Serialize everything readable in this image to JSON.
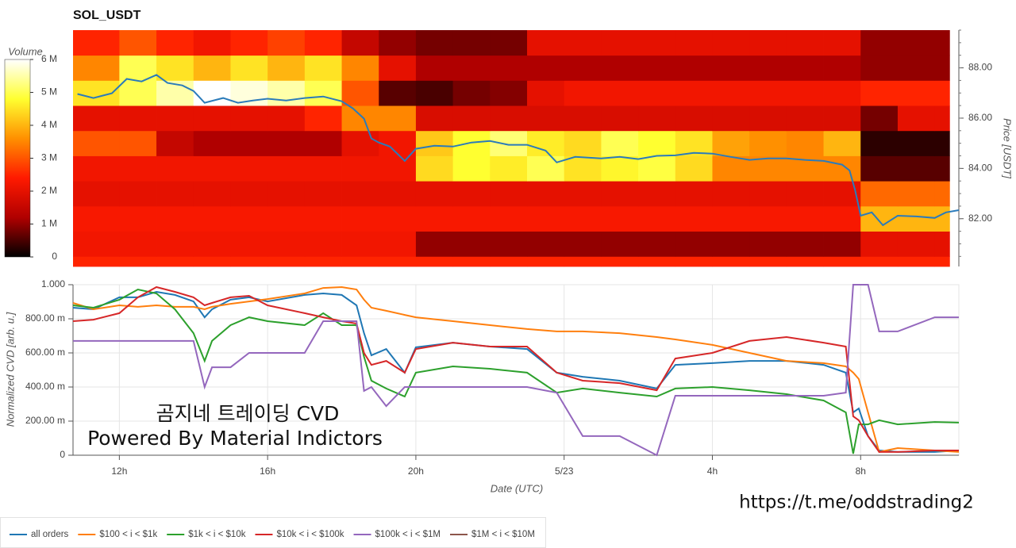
{
  "chart_data": [
    {
      "type": "heatmap",
      "title": "SOL_USDT",
      "xlim": [
        10.75,
        34.65
      ],
      "x_bins": [
        10.75,
        12,
        13,
        14,
        15,
        16,
        17,
        18,
        19,
        20,
        21,
        22,
        23,
        24,
        25,
        26,
        27,
        28,
        29,
        30,
        31,
        32,
        33,
        34,
        34.4
      ],
      "y_bins": [
        79.5,
        80.5,
        81.5,
        82.5,
        83.5,
        84.5,
        85.5,
        86.5,
        87.5,
        88.5,
        89.5
      ],
      "z": [
        [
          2500000.0,
          2500000.0,
          2500000.0,
          2500000.0,
          2500000.0,
          2500000.0,
          2500000.0,
          2500000.0,
          2500000.0,
          2500000.0,
          2500000.0,
          2500000.0,
          2500000.0,
          2500000.0,
          2500000.0,
          2500000.0,
          2500000.0,
          2500000.0,
          2500000.0,
          2500000.0,
          2500000.0,
          2500000.0,
          2500000.0,
          2500000.0
        ],
        [
          2200000.0,
          2200000.0,
          2200000.0,
          2200000.0,
          2200000.0,
          2200000.0,
          2200000.0,
          2200000.0,
          2200000.0,
          1000000.0,
          1000000.0,
          1000000.0,
          1000000.0,
          1000000.0,
          1000000.0,
          1000000.0,
          1000000.0,
          1000000.0,
          1000000.0,
          1000000.0,
          1000000.0,
          2000000.0,
          2000000.0,
          2000000.0
        ],
        [
          2300000.0,
          2300000.0,
          2300000.0,
          2300000.0,
          2300000.0,
          2300000.0,
          2300000.0,
          2300000.0,
          2300000.0,
          2300000.0,
          2300000.0,
          2300000.0,
          2300000.0,
          2300000.0,
          2300000.0,
          2300000.0,
          2300000.0,
          2300000.0,
          2300000.0,
          2300000.0,
          2300000.0,
          4000000.0,
          4000000.0,
          4000000.0
        ],
        [
          2000000.0,
          2000000.0,
          2000000.0,
          2000000.0,
          2000000.0,
          2000000.0,
          2000000.0,
          2000000.0,
          2000000.0,
          2000000.0,
          2000000.0,
          2000000.0,
          2000000.0,
          2000000.0,
          2000000.0,
          2000000.0,
          2000000.0,
          2000000.0,
          2000000.0,
          2000000.0,
          2000000.0,
          3200000.0,
          3200000.0,
          3200000.0
        ],
        [
          2200000.0,
          2200000.0,
          2200000.0,
          2200000.0,
          2200000.0,
          2200000.0,
          2200000.0,
          2200000.0,
          2200000.0,
          4400000.0,
          4800000.0,
          4600000.0,
          5000000.0,
          4500000.0,
          4700000.0,
          4900000.0,
          4400000.0,
          3500000.0,
          3500000.0,
          3500000.0,
          3500000.0,
          600000.0,
          600000.0,
          600000.0
        ],
        [
          3000000.0,
          3000000.0,
          1500000.0,
          1200000.0,
          1200000.0,
          1200000.0,
          1200000.0,
          2000000.0,
          2200000.0,
          4200000.0,
          4800000.0,
          5200000.0,
          4600000.0,
          4400000.0,
          5000000.0,
          4800000.0,
          4500000.0,
          3800000.0,
          3600000.0,
          3500000.0,
          4000000.0,
          300000.0,
          300000.0,
          300000.0
        ],
        [
          2000000.0,
          2000000.0,
          2000000.0,
          2000000.0,
          2000000.0,
          2000000.0,
          2500000.0,
          3500000.0,
          3500000.0,
          1800000.0,
          1800000.0,
          1800000.0,
          1800000.0,
          1800000.0,
          1800000.0,
          1800000.0,
          1800000.0,
          1800000.0,
          1800000.0,
          1800000.0,
          1800000.0,
          800000.0,
          2000000.0,
          2000000.0
        ],
        [
          4500000.0,
          5000000.0,
          5500000.0,
          6000000.0,
          5800000.0,
          5500000.0,
          5000000.0,
          3000000.0,
          600000.0,
          500000.0,
          800000.0,
          900000.0,
          2000000.0,
          2200000.0,
          2200000.0,
          2200000.0,
          2200000.0,
          2200000.0,
          2200000.0,
          2200000.0,
          2200000.0,
          2500000.0,
          2500000.0,
          2500000.0
        ],
        [
          3500000.0,
          5000000.0,
          4500000.0,
          4000000.0,
          4500000.0,
          4000000.0,
          4500000.0,
          3500000.0,
          2000000.0,
          1200000.0,
          1200000.0,
          1200000.0,
          1200000.0,
          1200000.0,
          1200000.0,
          1200000.0,
          1200000.0,
          1200000.0,
          1200000.0,
          1200000.0,
          1200000.0,
          1000000.0,
          1000000.0,
          1000000.0
        ],
        [
          2500000.0,
          3000000.0,
          2500000.0,
          2200000.0,
          2500000.0,
          2800000.0,
          2500000.0,
          1500000.0,
          1000000.0,
          800000.0,
          800000.0,
          800000.0,
          2000000.0,
          2000000.0,
          2000000.0,
          2000000.0,
          2000000.0,
          2000000.0,
          2000000.0,
          2000000.0,
          2000000.0,
          1000000.0,
          1000000.0,
          1000000.0
        ]
      ],
      "colormap": [
        "#000000",
        "#b00000",
        "#ff1a00",
        "#ff9000",
        "#ffff30",
        "#ffffff"
      ],
      "colorbar": {
        "label": "Volume",
        "lim": [
          0,
          6000000.0
        ],
        "ticks": [
          0,
          {
            "value": 1000000.0,
            "label": "1 M"
          },
          {
            "value": 2000000.0,
            "label": "2 M"
          },
          {
            "value": 3000000.0,
            "label": "3 M"
          },
          {
            "value": 4000000.0,
            "label": "4 M"
          },
          {
            "value": 5000000.0,
            "label": "5 M"
          },
          {
            "value": 6000000.0,
            "label": "6 M"
          }
        ]
      },
      "ylabel": "Price [USDT]",
      "ylim": [
        80.1,
        89.5
      ],
      "yticks": [
        {
          "value": 82,
          "label": "82.00"
        },
        {
          "value": 84,
          "label": "84.00"
        },
        {
          "value": 86,
          "label": "86.00"
        },
        {
          "value": 88,
          "label": "88.00"
        }
      ],
      "price": {
        "color": "#2b7bba",
        "x": [
          10.87,
          11.3,
          11.8,
          12.2,
          12.6,
          13,
          13.3,
          13.7,
          14,
          14.3,
          14.8,
          15.2,
          15.6,
          16,
          16.5,
          17,
          17.5,
          18,
          18.3,
          18.6,
          18.8,
          19,
          19.3,
          19.7,
          20,
          20.5,
          21,
          21.5,
          22,
          22.5,
          23,
          23.5,
          23.8,
          24.3,
          25,
          25.5,
          26,
          26.5,
          27,
          27.5,
          28,
          28.5,
          29,
          29.5,
          30,
          30.5,
          31,
          31.5,
          31.7,
          31.85,
          32,
          32.3,
          32.6,
          33,
          33.5,
          34,
          34.3,
          34.65
        ],
        "values": [
          86.96,
          86.8,
          86.99,
          87.56,
          87.46,
          87.72,
          87.4,
          87.3,
          87.08,
          86.61,
          86.8,
          86.61,
          86.7,
          86.77,
          86.7,
          86.8,
          86.86,
          86.67,
          86.39,
          85.98,
          85.19,
          85.03,
          84.87,
          84.3,
          84.78,
          84.9,
          84.87,
          85.03,
          85.09,
          84.94,
          84.94,
          84.71,
          84.24,
          84.46,
          84.4,
          84.46,
          84.37,
          84.5,
          84.52,
          84.62,
          84.59,
          84.46,
          84.34,
          84.4,
          84.4,
          84.34,
          84.3,
          84.15,
          83.92,
          83.13,
          82.12,
          82.25,
          81.74,
          82.12,
          82.09,
          82.03,
          82.25,
          82.34
        ]
      }
    },
    {
      "type": "line",
      "xlabel": "Date (UTC)",
      "ylabel": "Normalized CVD [arb. u.]",
      "xlim": [
        10.75,
        34.65
      ],
      "xticks": [
        {
          "value": 12,
          "label": "12h"
        },
        {
          "value": 16,
          "label": "16h"
        },
        {
          "value": 20,
          "label": "20h"
        },
        {
          "value": 24,
          "label": "5/23"
        },
        {
          "value": 28,
          "label": "4h"
        },
        {
          "value": 32,
          "label": "8h"
        }
      ],
      "ylim": [
        0,
        1
      ],
      "yticks": [
        0,
        {
          "value": 0.2,
          "label": "200.00 m"
        },
        {
          "value": 0.4,
          "label": "400.00 m"
        },
        {
          "value": 0.6,
          "label": "600.00 m"
        },
        {
          "value": 0.8,
          "label": "800.00 m"
        },
        {
          "value": 1,
          "label": "1.000"
        }
      ],
      "grid": true,
      "legend": "bottom-left",
      "x": [
        10.75,
        11.3,
        12,
        12.5,
        13,
        13.5,
        14,
        14.3,
        14.5,
        15,
        15.5,
        16,
        17,
        17.5,
        18,
        18.4,
        18.6,
        18.8,
        19.2,
        19.7,
        20,
        21,
        22,
        23,
        23.8,
        24.5,
        25.5,
        26.5,
        27,
        28,
        29,
        30,
        31,
        31.6,
        31.8,
        31.95,
        32.2,
        32.5,
        33,
        34,
        34.65
      ],
      "series": [
        {
          "name": "all orders",
          "color": "#1f77b4",
          "values": [
            0.865,
            0.856,
            0.926,
            0.926,
            0.958,
            0.94,
            0.902,
            0.809,
            0.856,
            0.912,
            0.926,
            0.902,
            0.94,
            0.949,
            0.94,
            0.879,
            0.716,
            0.586,
            0.623,
            0.484,
            0.633,
            0.66,
            0.637,
            0.623,
            0.484,
            0.46,
            0.437,
            0.391,
            0.53,
            0.54,
            0.553,
            0.553,
            0.53,
            0.484,
            0.251,
            0.274,
            0.112,
            0.028,
            0.019,
            0.019,
            0.028
          ]
        },
        {
          "name": "$100 < i < $1k",
          "color": "#ff7f0e",
          "values": [
            0.893,
            0.856,
            0.879,
            0.87,
            0.879,
            0.87,
            0.87,
            0.856,
            0.87,
            0.888,
            0.902,
            0.916,
            0.949,
            0.981,
            0.986,
            0.972,
            0.912,
            0.865,
            0.847,
            0.823,
            0.809,
            0.786,
            0.763,
            0.74,
            0.726,
            0.726,
            0.716,
            0.693,
            0.679,
            0.647,
            0.6,
            0.553,
            0.54,
            0.521,
            0.484,
            0.447,
            0.251,
            0.019,
            0.042,
            0.028,
            0.019
          ]
        },
        {
          "name": "$1k < i < $10k",
          "color": "#2ca02c",
          "values": [
            0.879,
            0.865,
            0.912,
            0.972,
            0.949,
            0.856,
            0.716,
            0.553,
            0.67,
            0.763,
            0.809,
            0.786,
            0.763,
            0.833,
            0.763,
            0.763,
            0.577,
            0.437,
            0.391,
            0.344,
            0.484,
            0.521,
            0.507,
            0.484,
            0.367,
            0.391,
            0.367,
            0.344,
            0.391,
            0.4,
            0.381,
            0.358,
            0.321,
            0.251,
            0.009,
            0.181,
            0.181,
            0.205,
            0.181,
            0.195,
            0.191
          ]
        },
        {
          "name": "$10k < i < $100k",
          "color": "#d62728",
          "values": [
            0.786,
            0.795,
            0.833,
            0.926,
            0.986,
            0.958,
            0.926,
            0.879,
            0.893,
            0.926,
            0.935,
            0.879,
            0.833,
            0.809,
            0.786,
            0.772,
            0.6,
            0.53,
            0.553,
            0.484,
            0.623,
            0.66,
            0.637,
            0.637,
            0.484,
            0.437,
            0.423,
            0.381,
            0.567,
            0.6,
            0.67,
            0.693,
            0.66,
            0.637,
            0.228,
            0.205,
            0.112,
            0.019,
            0.019,
            0.028,
            0.028
          ]
        },
        {
          "name": "$100k < i < $1M",
          "color": "#9467bd",
          "values": [
            0.67,
            0.67,
            0.67,
            0.67,
            0.67,
            0.67,
            0.67,
            0.4,
            0.516,
            0.516,
            0.6,
            0.6,
            0.6,
            0.786,
            0.786,
            0.786,
            0.377,
            0.4,
            0.288,
            0.4,
            0.4,
            0.4,
            0.4,
            0.4,
            0.367,
            0.112,
            0.112,
            0,
            0.349,
            0.349,
            0.349,
            0.349,
            0.349,
            0.367,
            1,
            1,
            1,
            0.726,
            0.726,
            0.809,
            0.809
          ]
        },
        {
          "name": "$1M < i < $10M",
          "color": "#8c564b",
          "values": [
            null,
            null,
            null,
            null,
            null,
            null,
            null,
            null,
            null,
            null,
            null,
            null,
            null,
            null,
            null,
            null,
            null,
            null,
            null,
            null,
            null,
            null,
            null,
            null,
            null,
            null,
            null,
            null,
            null,
            null,
            null,
            null,
            null,
            null,
            null,
            null,
            null,
            null,
            null,
            null,
            null
          ]
        }
      ]
    }
  ],
  "annotations": {
    "watermark": [
      "곰지네 트레이딩 CVD",
      "Powered By Material Indictors"
    ],
    "link": "https://t.me/oddstrading2"
  }
}
